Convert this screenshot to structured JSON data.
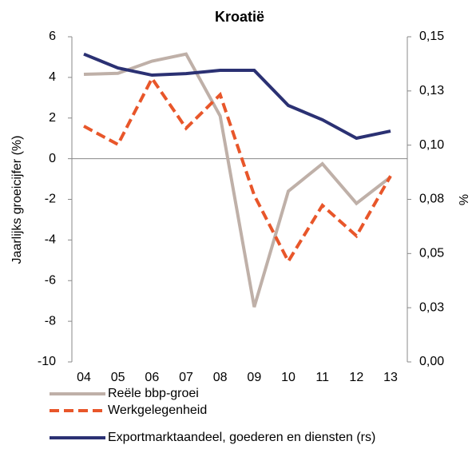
{
  "chart_data": {
    "type": "line",
    "title": "Kroatië",
    "y_label": "Jaarlijks groeicijfer (%)",
    "y2_label": "%",
    "categories": [
      "04",
      "05",
      "06",
      "07",
      "08",
      "09",
      "10",
      "11",
      "12",
      "13"
    ],
    "ylim": [
      -10,
      6
    ],
    "yticks": [
      -10,
      -8,
      -6,
      -4,
      -2,
      0,
      2,
      4,
      6
    ],
    "y2lim": [
      0,
      0.15
    ],
    "y2ticks": [
      {
        "value": 0,
        "label": "0,00"
      },
      {
        "value": 0.025,
        "label": "0,03"
      },
      {
        "value": 0.05,
        "label": "0,05"
      },
      {
        "value": 0.075,
        "label": "0,08"
      },
      {
        "value": 0.1,
        "label": "0,10"
      },
      {
        "value": 0.125,
        "label": "0,13"
      },
      {
        "value": 0.15,
        "label": "0,15"
      }
    ],
    "zero_line": true,
    "series": [
      {
        "name": "Reële bbp-groei",
        "color": "#bfb0a8",
        "linestyle": "solid",
        "values": [
          4.15,
          4.2,
          4.8,
          5.15,
          2.1,
          -7.3,
          -1.6,
          -0.25,
          -2.2,
          -0.9
        ]
      },
      {
        "name": "Werkgelegenheid",
        "color": "#e8562a",
        "linestyle": "dashed",
        "values": [
          1.6,
          0.7,
          3.95,
          1.5,
          3.15,
          -1.8,
          -5.05,
          -2.3,
          -3.8,
          -0.85
        ]
      },
      {
        "name": "Exportmarktaandeel, goederen en diensten (rs)",
        "color": "#2b3173",
        "linestyle": "solid",
        "axis": "y2",
        "values": [
          0.142,
          0.1356,
          0.1323,
          0.133,
          0.1345,
          0.1345,
          0.1183,
          0.1117,
          0.1032,
          0.1065
        ]
      }
    ]
  }
}
